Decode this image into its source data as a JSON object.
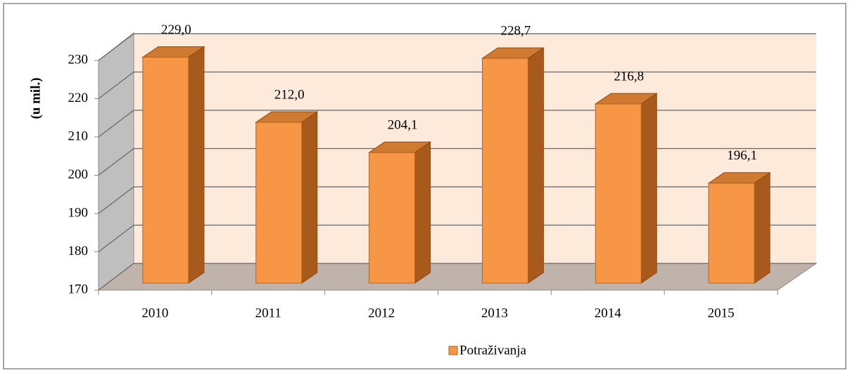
{
  "chart_data": {
    "type": "bar3d",
    "y_label": "(u mil.)",
    "categories": [
      "2010",
      "2011",
      "2012",
      "2013",
      "2014",
      "2015"
    ],
    "series": [
      {
        "name": "Potraživanja",
        "color": "#f79646",
        "values": [
          229.0,
          212.0,
          204.1,
          228.7,
          216.8,
          196.1
        ],
        "value_labels": [
          "229,0",
          "212,0",
          "204,1",
          "228,7",
          "216,8",
          "196,1"
        ]
      }
    ],
    "ylim": [
      170,
      230
    ],
    "yticks": [
      170,
      180,
      190,
      200,
      210,
      220,
      230
    ],
    "grid": true,
    "legend": "bottom"
  }
}
